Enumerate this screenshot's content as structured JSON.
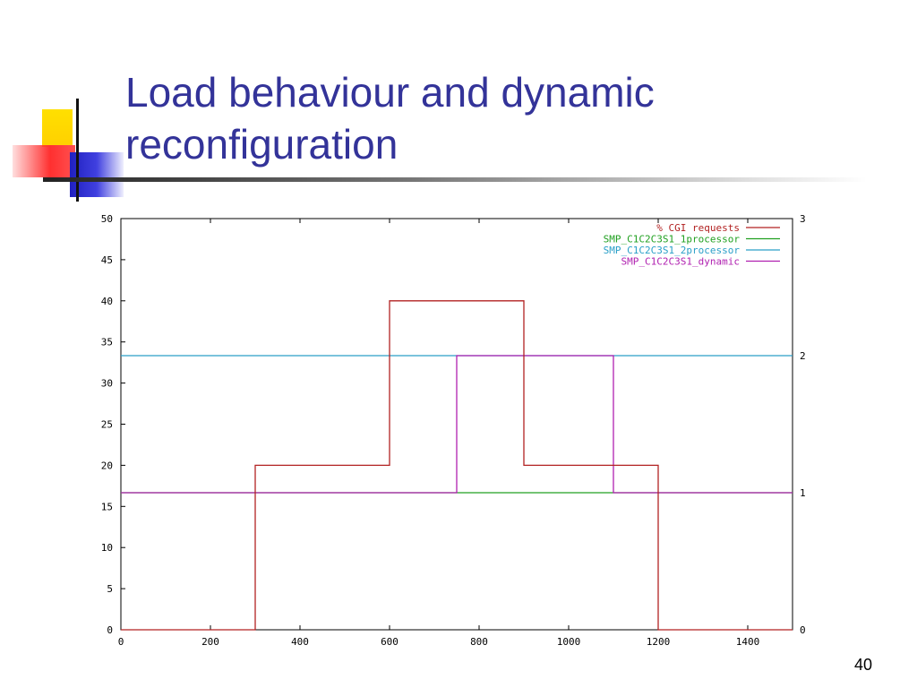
{
  "slide": {
    "title_line1": "Load behaviour and dynamic",
    "title_line2": "reconfiguration",
    "page_number": "40"
  },
  "colors": {
    "title": "#333399",
    "cgi": "#b22222",
    "one_processor": "#20a020",
    "two_processor": "#2a9fc8",
    "dynamic": "#b020b0"
  },
  "chart_data": {
    "type": "line",
    "title": "",
    "xlabel": "",
    "ylabel": "",
    "xlim": [
      0,
      1500
    ],
    "ylim": [
      0,
      50
    ],
    "y2lim": [
      0,
      3
    ],
    "x_ticks": [
      "0",
      "200",
      "400",
      "600",
      "800",
      "1000",
      "1200",
      "1400"
    ],
    "y_ticks": [
      "0",
      "5",
      "10",
      "15",
      "20",
      "25",
      "30",
      "35",
      "40",
      "45",
      "50"
    ],
    "y2_ticks": [
      "0",
      "1",
      "2",
      "3"
    ],
    "grid": false,
    "legend": "top-right",
    "step": true,
    "series": [
      {
        "name": "% CGI requests",
        "axis": "y",
        "color": "#b22222",
        "x": [
          0,
          300,
          300,
          600,
          600,
          900,
          900,
          1200,
          1200,
          1500
        ],
        "y": [
          0,
          0,
          20,
          20,
          40,
          40,
          20,
          20,
          0,
          0
        ]
      },
      {
        "name": "SMP_C1C2C3S1_1processor",
        "axis": "y2",
        "color": "#20a020",
        "x": [
          0,
          1500
        ],
        "y": [
          1,
          1
        ]
      },
      {
        "name": "SMP_C1C2C3S1_2processor",
        "axis": "y2",
        "color": "#2a9fc8",
        "x": [
          0,
          1500
        ],
        "y": [
          2,
          2
        ]
      },
      {
        "name": "SMP_C1C2C3S1_dynamic",
        "axis": "y2",
        "color": "#b020b0",
        "x": [
          0,
          750,
          750,
          1100,
          1100,
          1500
        ],
        "y": [
          1,
          1,
          2,
          2,
          1,
          1
        ]
      }
    ]
  }
}
